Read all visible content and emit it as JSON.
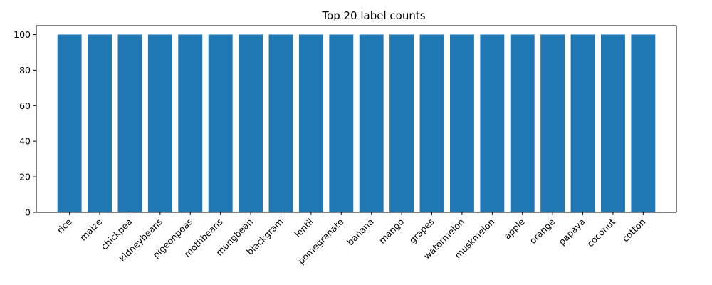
{
  "chart_data": {
    "type": "bar",
    "title": "Top 20 label counts",
    "xlabel": "",
    "ylabel": "",
    "categories": [
      "rice",
      "maize",
      "chickpea",
      "kidneybeans",
      "pigeonpeas",
      "mothbeans",
      "mungbean",
      "blackgram",
      "lentil",
      "pomegranate",
      "banana",
      "mango",
      "grapes",
      "watermelon",
      "muskmelon",
      "apple",
      "orange",
      "papaya",
      "coconut",
      "cotton"
    ],
    "values": [
      100,
      100,
      100,
      100,
      100,
      100,
      100,
      100,
      100,
      100,
      100,
      100,
      100,
      100,
      100,
      100,
      100,
      100,
      100,
      100
    ],
    "ylim": [
      0,
      105
    ],
    "yticks": [
      0,
      20,
      40,
      60,
      80,
      100
    ],
    "bar_color": "#1f77b4",
    "grid": false,
    "x_tick_rotation_deg": 45
  }
}
